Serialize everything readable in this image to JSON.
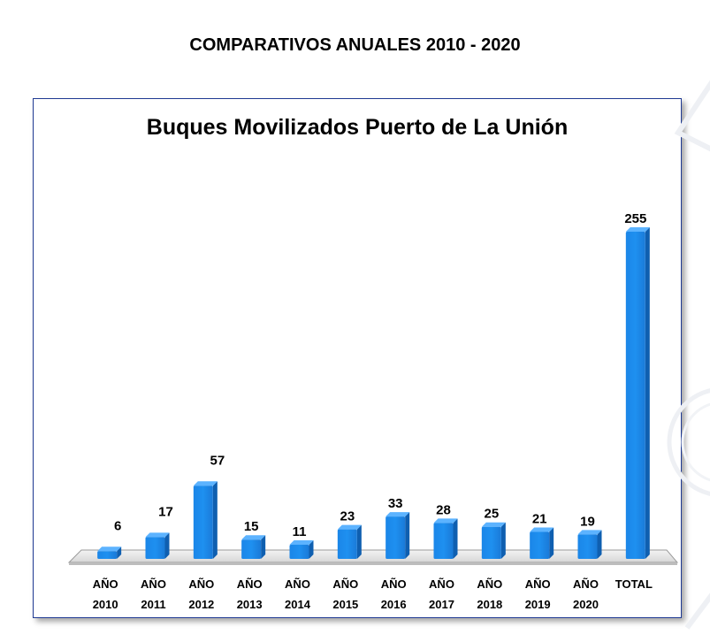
{
  "page": {
    "title": "COMPARATIVOS ANUALES  2010 - 2020"
  },
  "chart_data": {
    "type": "bar",
    "title": "Buques Movilizados Puerto de La Unión",
    "categories": [
      [
        "AÑO",
        "2010"
      ],
      [
        "AÑO",
        "2011"
      ],
      [
        "AÑO",
        "2012"
      ],
      [
        "AÑO",
        "2013"
      ],
      [
        "AÑO",
        "2014"
      ],
      [
        "AÑO",
        "2015"
      ],
      [
        "AÑO",
        "2016"
      ],
      [
        "AÑO",
        "2017"
      ],
      [
        "AÑO",
        "2018"
      ],
      [
        "AÑO",
        "2019"
      ],
      [
        "AÑO",
        "2020"
      ],
      [
        "TOTAL"
      ]
    ],
    "values": [
      6,
      17,
      57,
      15,
      11,
      23,
      33,
      28,
      25,
      21,
      19,
      255
    ],
    "ylim": [
      0,
      255
    ],
    "xlabel": "",
    "ylabel": "",
    "grid": false,
    "data_labels": true,
    "bar_color": "#1e90f0"
  }
}
